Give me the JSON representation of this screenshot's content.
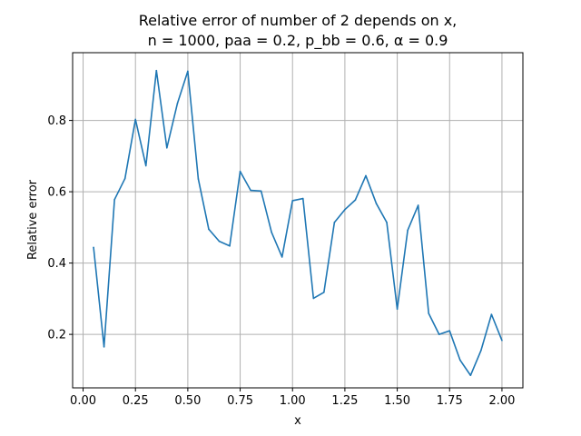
{
  "chart_data": {
    "type": "line",
    "title_line1": "Relative error of number of 2 depends on x,",
    "title_line2": "n = 1000, paa = 0.2, p_bb = 0.6, α = 0.9",
    "xlabel": "x",
    "ylabel": "Relative error",
    "xlim": [
      -0.05,
      2.1
    ],
    "ylim": [
      0.05,
      0.99
    ],
    "grid": true,
    "line_color": "#1f77b4",
    "x_ticks": [
      0.0,
      0.25,
      0.5,
      0.75,
      1.0,
      1.25,
      1.5,
      1.75,
      2.0
    ],
    "x_tick_labels": [
      "0.00",
      "0.25",
      "0.50",
      "0.75",
      "1.00",
      "1.25",
      "1.50",
      "1.75",
      "2.00"
    ],
    "y_ticks": [
      0.2,
      0.4,
      0.6,
      0.8
    ],
    "y_tick_labels": [
      "0.2",
      "0.4",
      "0.6",
      "0.8"
    ],
    "series": [
      {
        "x": [
          0.05,
          0.1,
          0.15,
          0.2,
          0.25,
          0.3,
          0.35,
          0.4,
          0.45,
          0.5,
          0.55,
          0.6,
          0.65,
          0.7,
          0.75,
          0.8,
          0.85,
          0.9,
          0.95,
          1.0,
          1.05,
          1.1,
          1.15,
          1.2,
          1.25,
          1.3,
          1.35,
          1.4,
          1.45,
          1.5,
          1.55,
          1.6,
          1.65,
          1.7,
          1.75,
          1.8,
          1.85,
          1.9,
          1.95,
          2.0
        ],
        "y": [
          0.444,
          0.165,
          0.578,
          0.637,
          0.803,
          0.673,
          0.94,
          0.723,
          0.847,
          0.938,
          0.636,
          0.495,
          0.461,
          0.448,
          0.657,
          0.604,
          0.602,
          0.486,
          0.417,
          0.575,
          0.581,
          0.301,
          0.318,
          0.514,
          0.55,
          0.577,
          0.645,
          0.567,
          0.514,
          0.271,
          0.492,
          0.562,
          0.259,
          0.2,
          0.21,
          0.128,
          0.085,
          0.155,
          0.256,
          0.183
        ]
      }
    ]
  }
}
